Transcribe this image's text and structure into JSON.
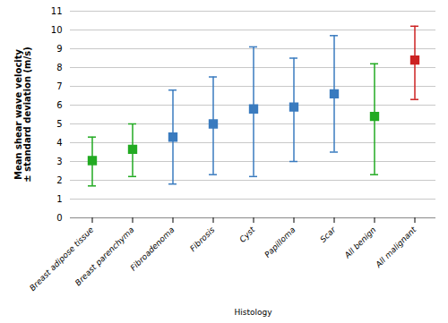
{
  "chart_data": {
    "type": "errorbar",
    "categories": [
      "Breast adipose tissue",
      "Breast parenchyma",
      "Fibroadenoma",
      "Fibrosis",
      "Cyst",
      "Papilloma",
      "Scar",
      "All benign",
      "All malignant"
    ],
    "values": [
      3.05,
      3.65,
      4.3,
      5.0,
      5.8,
      5.9,
      6.6,
      5.4,
      8.4
    ],
    "lower": [
      1.7,
      2.2,
      1.8,
      2.3,
      2.2,
      3.0,
      3.5,
      2.3,
      6.3
    ],
    "upper": [
      4.3,
      5.0,
      6.8,
      7.5,
      9.1,
      8.5,
      9.7,
      8.2,
      10.2
    ],
    "colors": [
      "#22aa22",
      "#22aa22",
      "#3a7bbf",
      "#3a7bbf",
      "#3a7bbf",
      "#3a7bbf",
      "#3a7bbf",
      "#22aa22",
      "#cc2222"
    ],
    "marker": "square",
    "ylabel": "Mean shear wave velocity\n± standard deviation (m/s)",
    "xlabel": "Histology",
    "ylim": [
      0,
      11
    ],
    "yticks": [
      0,
      1,
      2,
      3,
      4,
      5,
      6,
      7,
      8,
      9,
      10,
      11
    ],
    "grid": true
  }
}
